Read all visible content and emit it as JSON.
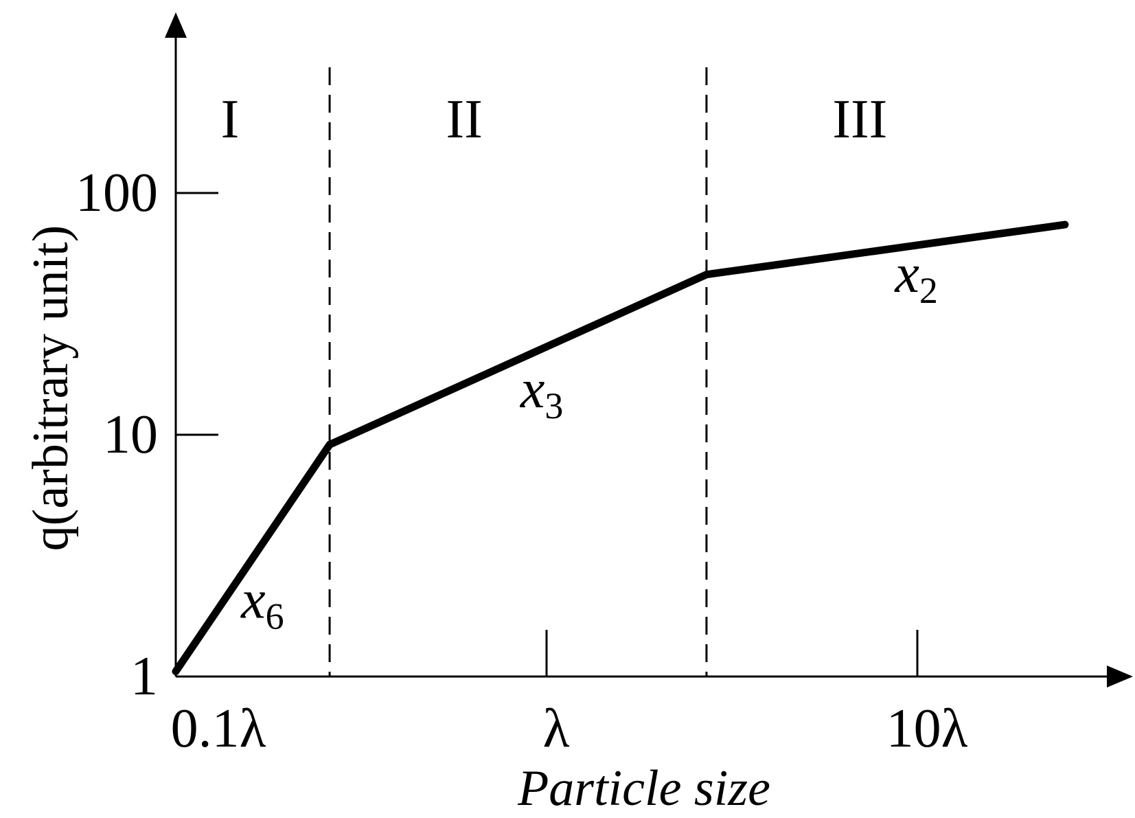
{
  "chart_data": {
    "type": "line",
    "xscale": "log",
    "yscale": "log",
    "xlabel": "Particle size",
    "ylabel": "q(arbitrary unit)",
    "xlim": [
      0.1,
      30
    ],
    "ylim": [
      1,
      200
    ],
    "x_ticks": [
      {
        "value": 0.1,
        "label": "0.1λ"
      },
      {
        "value": 1,
        "label": "λ"
      },
      {
        "value": 10,
        "label": "10λ"
      }
    ],
    "y_ticks": [
      {
        "value": 1,
        "label": "1"
      },
      {
        "value": 10,
        "label": "10"
      },
      {
        "value": 100,
        "label": "100"
      }
    ],
    "series": [
      {
        "x": [
          0.1,
          0.26,
          2.7,
          25
        ],
        "y": [
          1.05,
          9.1,
          46,
          74
        ]
      }
    ],
    "boundaries": [
      0.26,
      2.7
    ],
    "regions": [
      {
        "label": "I",
        "x": 0.14
      },
      {
        "label": "II",
        "x": 0.6
      },
      {
        "label": "III",
        "x": 7
      }
    ],
    "annotations": [
      {
        "text": "x",
        "sub": "6",
        "x": 0.15,
        "y": 1.75
      },
      {
        "text": "x",
        "sub": "3",
        "x": 0.85,
        "y": 13
      },
      {
        "text": "x",
        "sub": "2",
        "x": 8.7,
        "y": 39
      }
    ],
    "grid": false,
    "legend": "none"
  }
}
